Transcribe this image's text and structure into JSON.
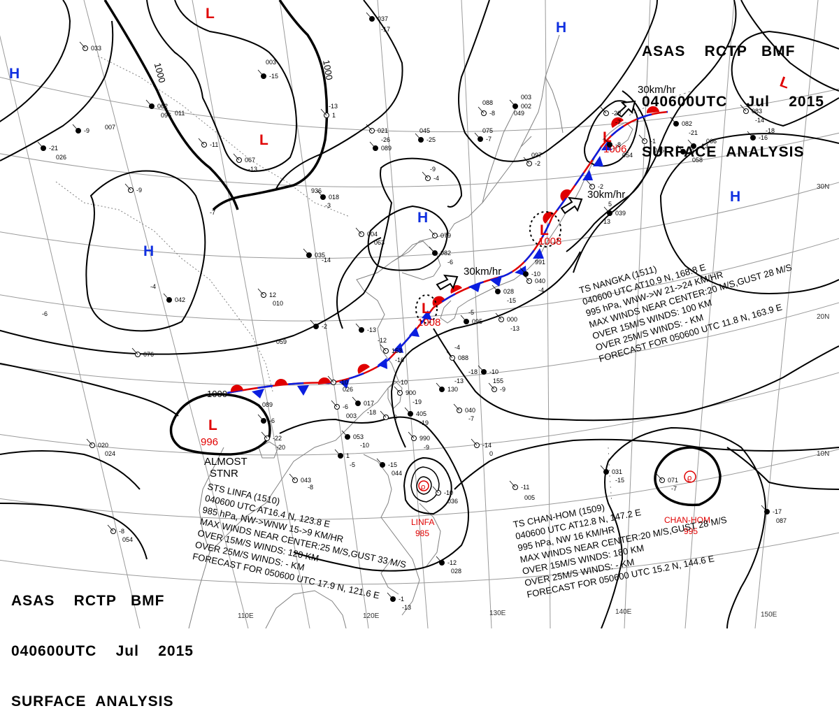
{
  "header": {
    "agency_line": "ASAS    RCTP   BMF",
    "time_line": "040600UTC    Jul    2015",
    "title_line": "SURFACE  ANALYSIS"
  },
  "centers": {
    "highs": [
      "H",
      "H",
      "H",
      "H",
      "H"
    ],
    "lows": [
      {
        "symbol": "L",
        "pressure": ""
      },
      {
        "symbol": "L",
        "pressure": ""
      },
      {
        "symbol": "L",
        "pressure": ""
      },
      {
        "symbol": "L",
        "pressure": "1006"
      },
      {
        "symbol": "L",
        "pressure": "1008"
      },
      {
        "symbol": "L",
        "pressure": "1008"
      },
      {
        "symbol": "L",
        "pressure": "996"
      }
    ]
  },
  "isobar_labels": [
    "1000",
    "1000",
    "1000"
  ],
  "motion_labels": [
    "30km/hr",
    "30km/hr",
    "30km/hr"
  ],
  "stationary_label": [
    "ALMOST",
    "STNR"
  ],
  "longitude_labels": [
    "110E",
    "120E",
    "130E",
    "140E",
    "150E"
  ],
  "latitude_labels": [
    "30N",
    "20N",
    "10N"
  ],
  "storms": {
    "nangka": {
      "lines": [
        "TS  NANGKA  (1511)",
        "040600 UTC  AT10.9 N, 168.8 E",
        "995 hPa, WNW->W  21->24 KM/HR",
        "MAX WINDS NEAR CENTER:20 M/S,GUST 28 M/S",
        "OVER 15M/S WINDS: 100 KM",
        "OVER 25M/S WINDS: - KM",
        "FORECAST FOR 050600 UTC 11.8 N, 163.9 E"
      ]
    },
    "linfa": {
      "lines": [
        "STS  LINFA  (1510)",
        "040600  UTC  AT16.4 N, 123.8 E",
        "985 hPa, NW->WNW  15->9 KM/HR",
        "MAX WINDS NEAR CENTER:25 M/S,GUST 33 M/S",
        "OVER 15M/S WINDS: 120 KM",
        "OVER 25M/S WINDS: - KM",
        "FORECAST FOR 050600 UTC 17.9 N, 121.6 E"
      ],
      "map_name": "LINFA",
      "map_pressure": "985"
    },
    "chanhom": {
      "lines": [
        "TS  CHAN-HOM  (1509)",
        "040600  UTC  AT12.8 N, 147.2 E",
        "995 hPa, NW  16 KM/HR",
        "MAX WINDS NEAR CENTER:20 M/S,GUST 28 M/S",
        "OVER 15M/S WINDS: 180 KM",
        "OVER 25M/S WINDS: - KM",
        "FORECAST FOR 050600  UTC 15.2 N, 144.6 E"
      ],
      "map_name": "CHAN-HOM",
      "map_pressure": "995"
    }
  },
  "station_values": [
    "037",
    "-17",
    "033",
    "003",
    "-15",
    "-13",
    "1",
    "011",
    "-9",
    "936",
    "-11",
    "007",
    "-21",
    "026",
    "-9",
    "-7",
    "018",
    "-3",
    "004",
    "063",
    "035",
    "-14",
    "12",
    "010",
    "-2",
    "059",
    "076",
    "-4",
    "042",
    "-6",
    "021",
    "-26",
    "089",
    "-9",
    "-4",
    "045",
    "-25",
    "088",
    "-8",
    "075",
    "-7",
    "097",
    "-2",
    "003",
    "002",
    "049",
    "-20",
    "-7",
    "082",
    "-21",
    "083",
    "-14",
    "-13",
    "066",
    "-2",
    "5",
    "039",
    "-13",
    "040",
    "-4",
    "082",
    "-6",
    "079",
    "-5",
    "095",
    "-4",
    "088",
    "-18",
    "-10",
    "155",
    "-9",
    "-13",
    "130",
    "-10",
    "900",
    "-19",
    "405",
    "-19",
    "153",
    "-16",
    "-13",
    "-12",
    "-10",
    "026",
    "-6",
    "089",
    "-22",
    "-20",
    "053",
    "-10",
    "043",
    "-8",
    "-15",
    "044",
    "-10",
    "036",
    "-12",
    "028",
    "-14",
    "0",
    "031",
    "-15",
    "071",
    "-7",
    "-3",
    "058",
    "-8",
    "054",
    "-1",
    "-13",
    "020",
    "024",
    "-17",
    "087",
    "-11",
    "005",
    "-8",
    "054",
    "-6",
    "003",
    "017",
    "-18",
    "000",
    "-13",
    "028",
    "-15",
    "990",
    "-9",
    "1",
    "-5",
    "040",
    "-7",
    "-10",
    "991",
    "-1",
    "045",
    "-16",
    "-18",
    "067",
    "-13",
    "062",
    "096",
    "-6",
    "-20",
    "1",
    "-5",
    "-13",
    "-10",
    "-11",
    "020",
    "-5",
    "-9",
    "-8",
    "-16",
    "-12",
    "-4",
    "-10"
  ],
  "colors": {
    "isobar": "#000000",
    "warm_front": "#e00000",
    "cold_front": "#0a1ee0",
    "high_symbol": "#1030e0",
    "low_symbol": "#e00000",
    "graticule": "#9a9a9a",
    "coastline": "#808080",
    "label_red": "#e00000"
  }
}
